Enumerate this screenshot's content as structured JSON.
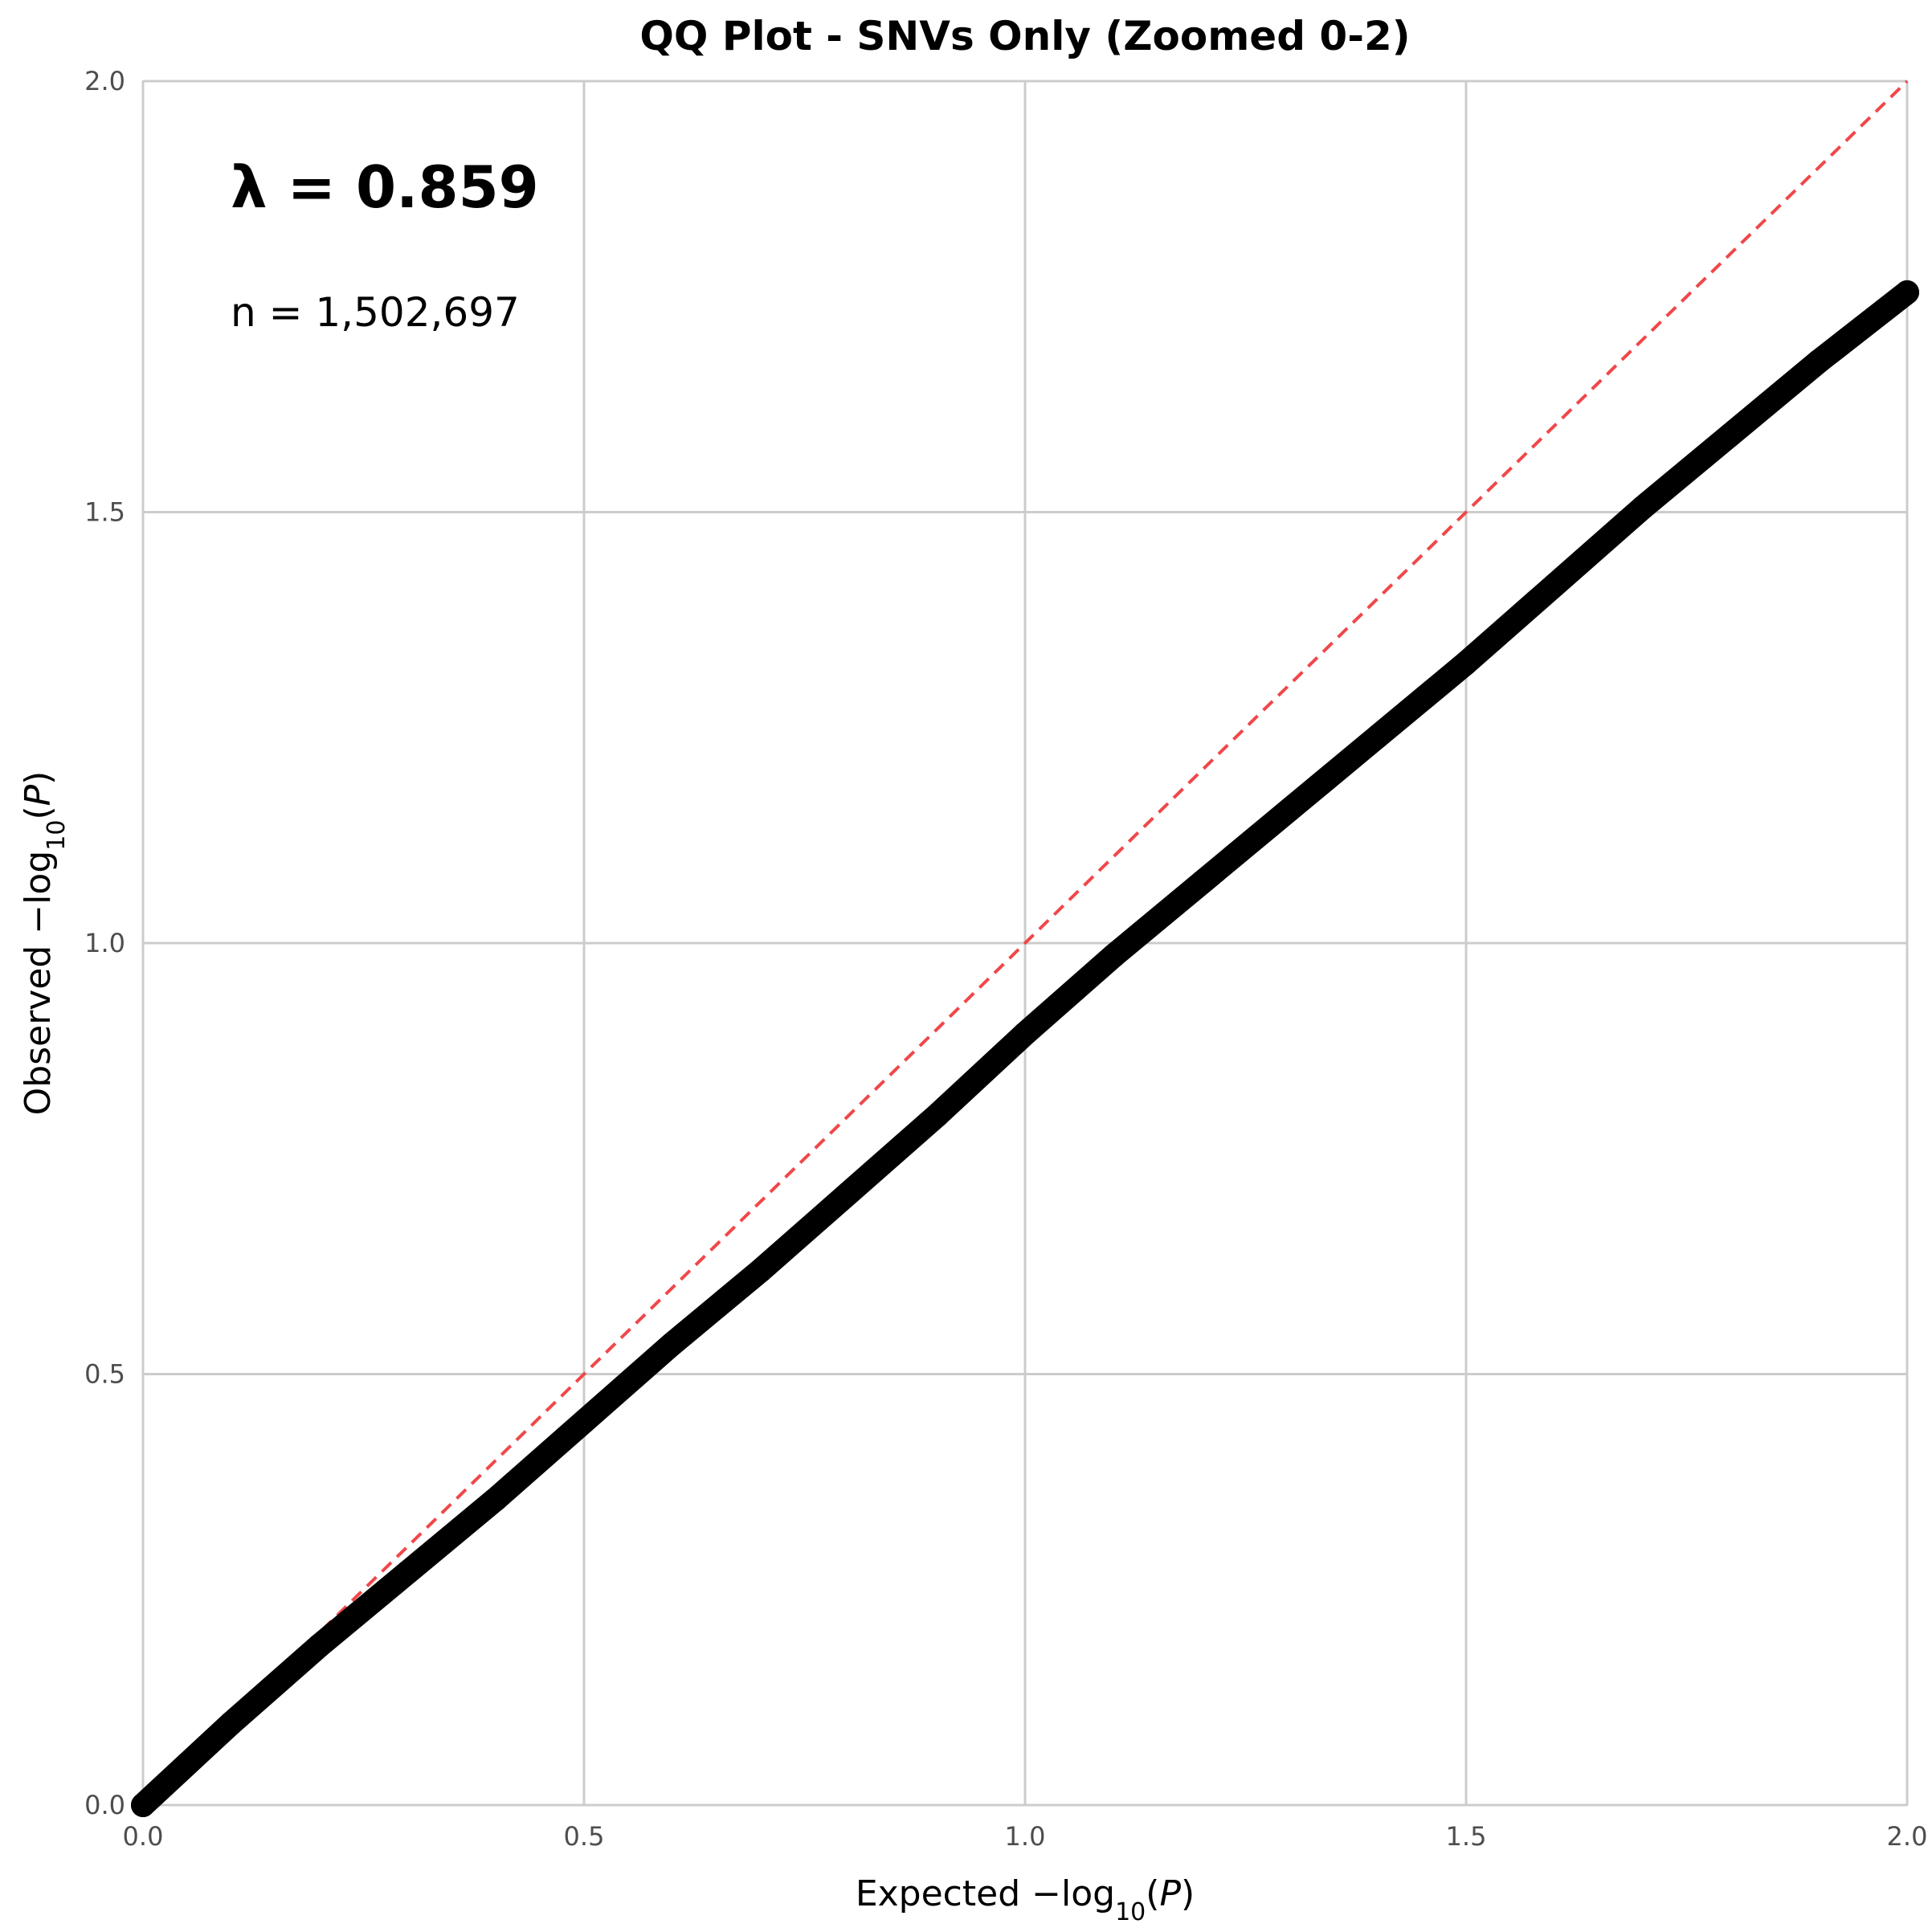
{
  "chart_data": {
    "type": "scatter",
    "title": "QQ Plot - SNVs Only (Zoomed 0-2)",
    "xlabel": {
      "prefix": "Expected ",
      "minus": "−",
      "base": "log",
      "sub": "10",
      "arg": "P"
    },
    "ylabel": {
      "prefix": "Observed ",
      "minus": "−",
      "base": "log",
      "sub": "10",
      "arg": "P"
    },
    "xlim": [
      0,
      2
    ],
    "ylim": [
      0,
      2
    ],
    "x_ticks": [
      {
        "value": 0,
        "label": "0.0"
      },
      {
        "value": 0.5,
        "label": "0.5"
      },
      {
        "value": 1.0,
        "label": "1.0"
      },
      {
        "value": 1.5,
        "label": "1.5"
      },
      {
        "value": 2.0,
        "label": "2.0"
      }
    ],
    "y_ticks": [
      {
        "value": 0,
        "label": "0.0"
      },
      {
        "value": 0.5,
        "label": "0.5"
      },
      {
        "value": 1.0,
        "label": "1.0"
      },
      {
        "value": 1.5,
        "label": "1.5"
      },
      {
        "value": 2.0,
        "label": "2.0"
      }
    ],
    "grid": true,
    "annotations": {
      "lambda": "λ = 0.859",
      "n": "n = 1,502,697"
    },
    "reference_line": {
      "from": [
        0,
        0
      ],
      "to": [
        2,
        2
      ],
      "color": "#f0474a",
      "style": "dashed"
    },
    "series": [
      {
        "color": "#000000",
        "x": [
          0.0,
          0.1,
          0.2,
          0.3,
          0.4,
          0.5,
          0.6,
          0.7,
          0.8,
          0.9,
          1.0,
          1.1,
          1.2,
          1.3,
          1.4,
          1.5,
          1.6,
          1.7,
          1.8,
          1.9,
          2.0
        ],
        "y": [
          0.0,
          0.095,
          0.185,
          0.27,
          0.355,
          0.445,
          0.535,
          0.62,
          0.71,
          0.8,
          0.895,
          0.985,
          1.07,
          1.155,
          1.24,
          1.325,
          1.415,
          1.505,
          1.59,
          1.675,
          1.755
        ]
      }
    ],
    "colors": {
      "grid": "#cccccc",
      "points": "#000000",
      "reference": "#f0474a",
      "tick_text": "#4d4d4d"
    }
  }
}
